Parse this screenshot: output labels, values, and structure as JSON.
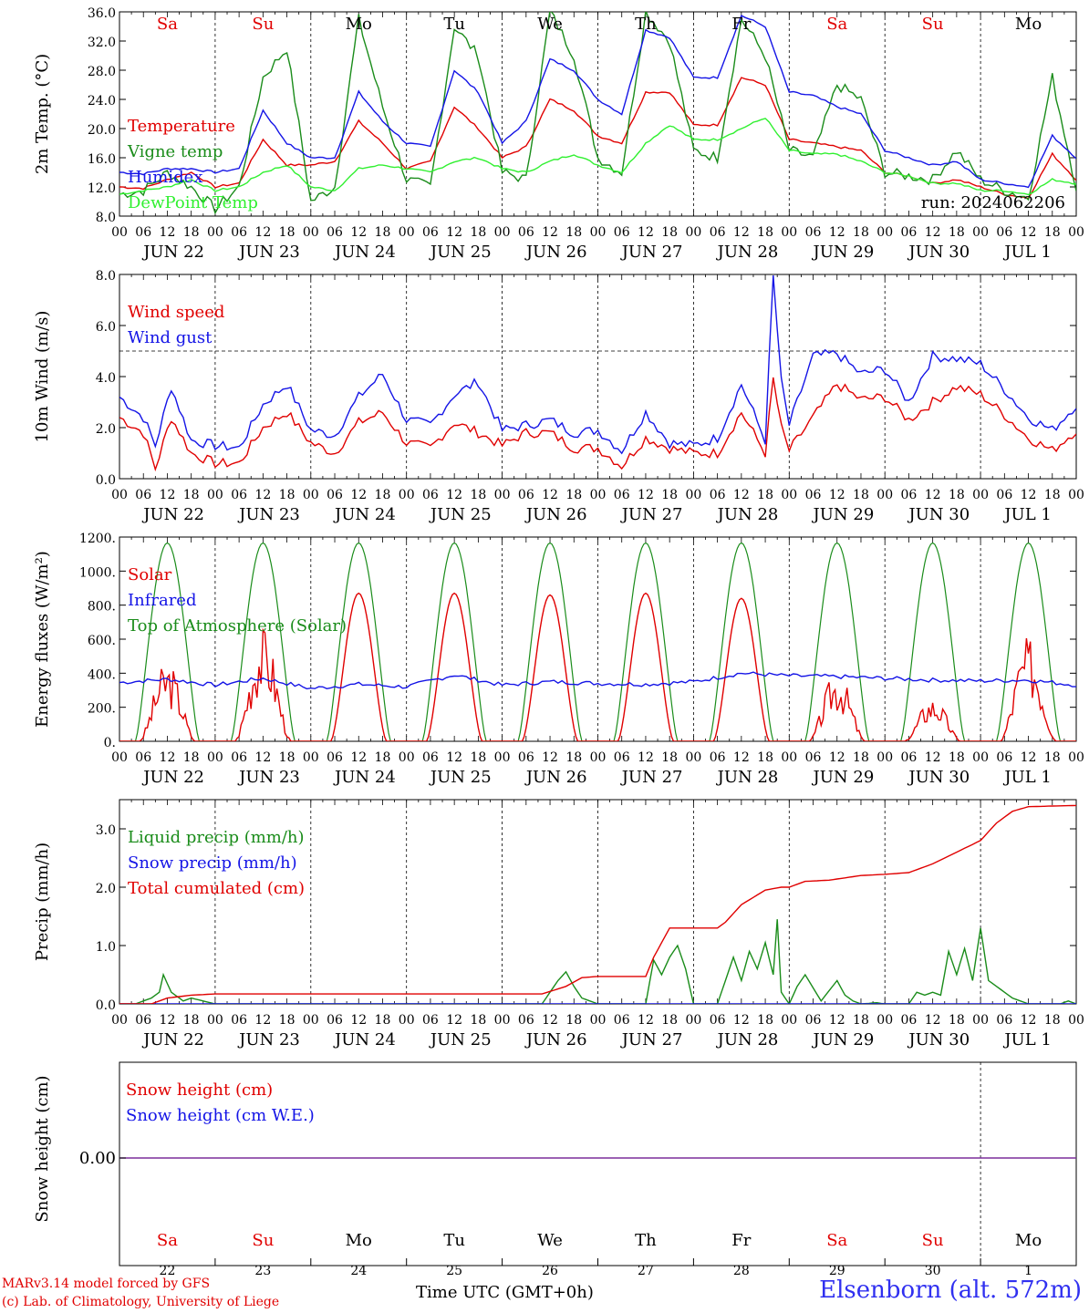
{
  "footer": {
    "line1": "MARv3.14 model forced by GFS",
    "line2": "(c) Lab. of Climatology, University of Liege",
    "xlabel": "Time UTC (GMT+0h)",
    "station": "Elsenborn (alt. 572m)"
  },
  "colors": {
    "red": "#e00000",
    "green": "#1a8c1a",
    "blue": "#1414e6",
    "lime": "#30f030",
    "purple": "#7b2f9c"
  },
  "chart_data": [
    {
      "type": "line",
      "id": "temperature",
      "ylabel": "2m Temp. (°C)",
      "ylim": [
        8,
        36
      ],
      "yticks": [
        "8.0",
        "12.0",
        "16.0",
        "20.0",
        "24.0",
        "28.0",
        "32.0",
        "36.0"
      ],
      "yticks_values": [
        8,
        12,
        16,
        20,
        24,
        28,
        32,
        36
      ],
      "x_unit": "hours since 00 UTC JUN 22",
      "xlim": [
        0,
        240
      ],
      "hour_ticks": [
        "00",
        "06",
        "12",
        "18"
      ],
      "date_labels": [
        "JUN 22",
        "JUN 23",
        "JUN 24",
        "JUN 25",
        "JUN 26",
        "JUN 27",
        "JUN 28",
        "JUN 29",
        "JUN 30",
        "JUL  1"
      ],
      "weekdays": [
        "Sa",
        "Su",
        "Mo",
        "Tu",
        "We",
        "Th",
        "Fr",
        "Sa",
        "Su",
        "Mo"
      ],
      "weekday_colors": [
        "#e00000",
        "#e00000",
        "#000000",
        "#000000",
        "#000000",
        "#000000",
        "#000000",
        "#e00000",
        "#e00000",
        "#000000"
      ],
      "annotation": "run: 2024062206",
      "series": [
        {
          "name": "Temperature",
          "color": "#e00000",
          "x": [
            0,
            6,
            12,
            18,
            24,
            30,
            36,
            42,
            48,
            54,
            60,
            66,
            72,
            78,
            84,
            90,
            96,
            102,
            108,
            114,
            120,
            126,
            132,
            138,
            144,
            150,
            156,
            162,
            168,
            174,
            180,
            186,
            192,
            198,
            204,
            210,
            216,
            222,
            228,
            234,
            240
          ],
          "values": [
            12,
            11.8,
            13,
            14,
            12,
            12.5,
            18.5,
            15,
            15,
            15.5,
            21,
            18,
            14.5,
            15.5,
            23,
            20,
            16,
            17.5,
            24,
            22.5,
            19,
            18,
            25,
            25,
            20.5,
            20.5,
            27,
            26,
            18.5,
            18,
            17.5,
            17,
            14,
            13.5,
            12.5,
            13,
            12,
            11,
            10.5,
            16.5,
            13
          ]
        },
        {
          "name": "Vigne temp",
          "color": "#1a8c1a",
          "x": [
            0,
            6,
            12,
            18,
            24,
            30,
            36,
            42,
            48,
            54,
            60,
            66,
            72,
            78,
            84,
            90,
            96,
            102,
            108,
            114,
            120,
            126,
            132,
            138,
            144,
            150,
            156,
            162,
            168,
            174,
            180,
            186,
            192,
            198,
            204,
            210,
            216,
            222,
            228,
            234,
            240
          ],
          "values": [
            11,
            11.5,
            14,
            12,
            9,
            12,
            27,
            31,
            10,
            12,
            35,
            23,
            13,
            12,
            34,
            30,
            14,
            13,
            36,
            30,
            16,
            14,
            36,
            32,
            17,
            16,
            35,
            30,
            17,
            16,
            26,
            24,
            14,
            13.5,
            13,
            17,
            13,
            11.5,
            10.5,
            27,
            12
          ]
        },
        {
          "name": "Humidex",
          "color": "#1414e6",
          "x": [
            0,
            6,
            12,
            18,
            24,
            30,
            36,
            42,
            48,
            54,
            60,
            66,
            72,
            78,
            84,
            90,
            96,
            102,
            108,
            114,
            120,
            126,
            132,
            138,
            144,
            150,
            156,
            162,
            168,
            174,
            180,
            186,
            192,
            198,
            204,
            210,
            216,
            222,
            228,
            234,
            240
          ],
          "values": [
            14,
            13.8,
            14.5,
            14.5,
            14,
            14.5,
            22.5,
            18,
            16,
            16,
            25,
            21,
            18,
            17.5,
            28,
            25,
            18,
            21,
            29.5,
            28,
            24,
            22,
            33.5,
            32.5,
            27,
            27,
            35.5,
            34,
            25,
            24.5,
            23,
            22,
            17,
            16,
            15,
            15.5,
            13,
            12.5,
            12,
            19,
            16
          ]
        },
        {
          "name": "DewPoint Temp",
          "color": "#30f030",
          "x": [
            0,
            6,
            12,
            18,
            24,
            30,
            36,
            42,
            48,
            54,
            60,
            66,
            72,
            78,
            84,
            90,
            96,
            102,
            108,
            114,
            120,
            126,
            132,
            138,
            144,
            150,
            156,
            162,
            168,
            174,
            180,
            186,
            192,
            198,
            204,
            210,
            216,
            222,
            228,
            234,
            240
          ],
          "values": [
            11,
            11.5,
            12,
            13,
            11.5,
            12,
            14,
            15,
            12,
            11.5,
            14.5,
            15,
            14.5,
            14,
            15.5,
            16,
            14.5,
            14,
            15.5,
            16.5,
            15,
            14,
            18,
            20.5,
            18.5,
            18.5,
            20,
            21.5,
            17,
            16.5,
            16.5,
            15.5,
            14,
            13.5,
            12.5,
            12.5,
            11.5,
            11.5,
            11,
            13,
            12.5
          ]
        }
      ]
    },
    {
      "type": "line",
      "id": "wind",
      "ylabel": "10m Wind (m/s)",
      "ylim": [
        0,
        8
      ],
      "yticks": [
        "0.0",
        "2.0",
        "4.0",
        "6.0",
        "8.0"
      ],
      "yticks_values": [
        0,
        2,
        4,
        6,
        8
      ],
      "reference_line": 5,
      "x_unit": "hours since 00 UTC JUN 22",
      "xlim": [
        0,
        240
      ],
      "hour_ticks": [
        "00",
        "06",
        "12",
        "18"
      ],
      "date_labels": [
        "JUN 22",
        "JUN 23",
        "JUN 24",
        "JUN 25",
        "JUN 26",
        "JUN 27",
        "JUN 28",
        "JUN 29",
        "JUN 30",
        "JUL  1"
      ],
      "series": [
        {
          "name": "Wind speed",
          "color": "#e00000",
          "x": [
            0,
            6,
            9,
            13,
            18,
            24,
            30,
            36,
            42,
            48,
            54,
            60,
            66,
            72,
            78,
            84,
            90,
            96,
            102,
            108,
            114,
            120,
            126,
            132,
            138,
            144,
            150,
            156,
            162,
            164,
            166,
            168,
            174,
            180,
            186,
            192,
            198,
            204,
            210,
            216,
            222,
            228,
            234,
            240
          ],
          "values": [
            2.4,
            1.8,
            0.4,
            2.4,
            1,
            0.6,
            0.6,
            2,
            2.6,
            1.4,
            1,
            2.2,
            2.6,
            1.4,
            1.2,
            2.2,
            1.8,
            1.3,
            1.8,
            1.8,
            1.2,
            1.2,
            0.5,
            1.6,
            1.2,
            1,
            1,
            2.6,
            1,
            3.9,
            2,
            1.1,
            2.4,
            3.7,
            3.1,
            3.2,
            2.3,
            3,
            3.6,
            3.3,
            2.5,
            1.6,
            1.1,
            1.9
          ]
        },
        {
          "name": "Wind gust",
          "color": "#1414e6",
          "x": [
            0,
            6,
            9,
            13,
            18,
            24,
            30,
            36,
            42,
            48,
            54,
            60,
            66,
            72,
            78,
            84,
            90,
            96,
            102,
            108,
            114,
            120,
            126,
            132,
            138,
            144,
            150,
            156,
            162,
            164,
            166,
            168,
            174,
            180,
            186,
            192,
            198,
            204,
            210,
            216,
            222,
            228,
            234,
            240
          ],
          "values": [
            3.2,
            2.4,
            1.3,
            3.6,
            1.5,
            1.3,
            1.2,
            2.9,
            3.7,
            1.9,
            1.7,
            3.2,
            4.1,
            2.3,
            2.1,
            3.3,
            3.8,
            1.9,
            2.1,
            2.3,
            1.8,
            1.9,
            1.1,
            2.6,
            1.4,
            1.3,
            1.6,
            3.7,
            1.5,
            7.9,
            3.8,
            2.1,
            4.8,
            4.9,
            4.1,
            4.3,
            3,
            4.8,
            4.7,
            4.5,
            3.5,
            2.4,
            1.9,
            2.9
          ]
        }
      ]
    },
    {
      "type": "line",
      "id": "energy",
      "ylabel": "Energy fluxes (W/m²)",
      "ylim": [
        0,
        1200
      ],
      "yticks": [
        "0.",
        "200.",
        "400.",
        "600.",
        "800.",
        "1000.",
        "1200."
      ],
      "yticks_values": [
        0,
        200,
        400,
        600,
        800,
        1000,
        1200
      ],
      "x_unit": "hours since 00 UTC JUN 22",
      "xlim": [
        0,
        240
      ],
      "hour_ticks": [
        "00",
        "06",
        "12",
        "18"
      ],
      "date_labels": [
        "JUN 22",
        "JUN 23",
        "JUN 24",
        "JUN 25",
        "JUN 26",
        "JUN 27",
        "JUN 28",
        "JUN 29",
        "JUN 30",
        "JUL  1"
      ],
      "toa_peak": 1165,
      "solar_daily_peaks": [
        480,
        680,
        870,
        870,
        860,
        870,
        840,
        420,
        270,
        620
      ],
      "series": [
        {
          "name": "Solar",
          "color": "#e00000"
        },
        {
          "name": "Infrared",
          "color": "#1414e6",
          "x": [
            0,
            12,
            24,
            36,
            48,
            60,
            72,
            84,
            96,
            108,
            120,
            132,
            144,
            156,
            168,
            180,
            192,
            204,
            216,
            228,
            240
          ],
          "values": [
            345,
            365,
            330,
            370,
            310,
            335,
            320,
            390,
            330,
            350,
            340,
            335,
            350,
            400,
            385,
            380,
            370,
            360,
            355,
            360,
            330
          ]
        },
        {
          "name": "Top of Atmosphere (Solar)",
          "color": "#1a8c1a"
        }
      ]
    },
    {
      "type": "line",
      "id": "precip",
      "ylabel": "Precip (mm/h)",
      "ylim": [
        0,
        3.5
      ],
      "yticks": [
        "0.0",
        "1.0",
        "2.0",
        "3.0"
      ],
      "yticks_values": [
        0,
        1,
        2,
        3
      ],
      "x_unit": "hours since 00 UTC JUN 22",
      "xlim": [
        0,
        240
      ],
      "hour_ticks": [
        "00",
        "06",
        "12",
        "18"
      ],
      "date_labels": [
        "JUN 22",
        "JUN 23",
        "JUN 24",
        "JUN 25",
        "JUN 26",
        "JUN 27",
        "JUN 28",
        "JUN 29",
        "JUN 30",
        "JUL  1"
      ],
      "series": [
        {
          "name": "Liquid precip (mm/h)",
          "color": "#1a8c1a",
          "x": [
            0,
            4,
            8,
            10,
            11,
            13,
            16,
            18,
            24,
            106,
            110,
            112,
            114,
            116,
            120,
            132,
            134,
            136,
            138,
            140,
            142,
            144,
            150,
            154,
            156,
            158,
            160,
            162,
            164,
            165,
            166,
            168,
            170,
            172,
            176,
            180,
            182,
            184,
            186,
            190,
            192,
            198,
            200,
            202,
            204,
            206,
            208,
            210,
            212,
            214,
            216,
            218,
            224,
            228,
            234,
            236,
            238,
            240
          ],
          "values": [
            0,
            0,
            0.1,
            0.2,
            0.5,
            0.2,
            0.05,
            0.1,
            0,
            0,
            0.4,
            0.55,
            0.3,
            0.1,
            0,
            0,
            0.75,
            0.5,
            0.8,
            1,
            0.6,
            0,
            0,
            0.8,
            0.4,
            0.9,
            0.6,
            1.05,
            0.5,
            1.45,
            0.2,
            0,
            0.3,
            0.5,
            0.05,
            0.4,
            0.15,
            0.05,
            0,
            0.02,
            0,
            0,
            0.2,
            0.15,
            0.2,
            0.15,
            0.9,
            0.5,
            0.95,
            0.4,
            1.3,
            0.4,
            0.1,
            0,
            0,
            0,
            0.05,
            0
          ]
        },
        {
          "name": "Snow precip (mm/h)",
          "color": "#1414e6",
          "x": [
            0,
            240
          ],
          "values": [
            0,
            0
          ]
        },
        {
          "name": "Total cumulated (cm)",
          "color": "#e00000",
          "x": [
            0,
            8,
            12,
            18,
            24,
            48,
            72,
            96,
            106,
            112,
            116,
            120,
            132,
            134,
            138,
            144,
            150,
            152,
            156,
            162,
            166,
            168,
            172,
            178,
            186,
            192,
            198,
            200,
            204,
            210,
            216,
            220,
            224,
            228,
            240
          ],
          "values": [
            0,
            0,
            0.1,
            0.15,
            0.17,
            0.17,
            0.17,
            0.17,
            0.17,
            0.3,
            0.45,
            0.47,
            0.47,
            0.8,
            1.3,
            1.3,
            1.3,
            1.4,
            1.7,
            1.95,
            2,
            2,
            2.1,
            2.12,
            2.2,
            2.22,
            2.25,
            2.3,
            2.4,
            2.6,
            2.8,
            3.1,
            3.3,
            3.38,
            3.4
          ]
        }
      ]
    },
    {
      "type": "line",
      "id": "snow",
      "ylabel": "Snow height (cm)",
      "yticks": [
        "0.00"
      ],
      "series_names": [
        "Snow height (cm)",
        "Snow height (cm W.E.)"
      ],
      "series_colors": [
        "#e00000",
        "#1414e6"
      ],
      "line_color": "#7b2f9c",
      "value": 0,
      "weekdays": [
        "Sa",
        "Su",
        "Mo",
        "Tu",
        "We",
        "Th",
        "Fr",
        "Sa",
        "Su",
        "Mo"
      ],
      "weekday_colors": [
        "#e00000",
        "#e00000",
        "#000000",
        "#000000",
        "#000000",
        "#000000",
        "#000000",
        "#e00000",
        "#e00000",
        "#000000"
      ],
      "day_numbers": [
        "22",
        "23",
        "24",
        "25",
        "26",
        "27",
        "28",
        "29",
        "30",
        "1"
      ]
    }
  ]
}
